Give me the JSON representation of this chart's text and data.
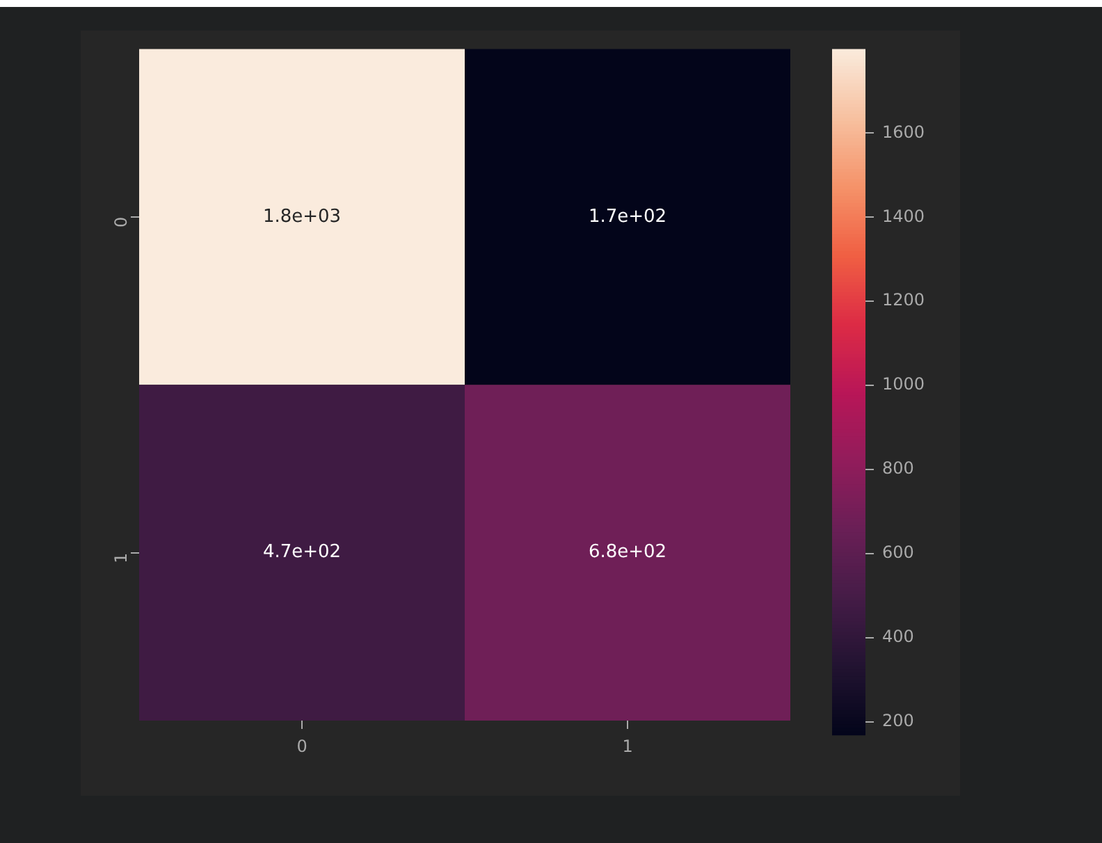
{
  "chart_data": {
    "type": "heatmap",
    "categories": [
      "0",
      "1"
    ],
    "y_categories": [
      "0",
      "1"
    ],
    "cells": [
      [
        1800,
        170
      ],
      [
        470,
        680
      ]
    ],
    "cell_labels": [
      [
        "1.8e+03",
        "1.7e+02"
      ],
      [
        "4.7e+02",
        "6.8e+02"
      ]
    ],
    "clim": [
      170,
      1800
    ],
    "cticks": [
      200,
      400,
      600,
      800,
      1000,
      1200,
      1400,
      1600
    ]
  }
}
